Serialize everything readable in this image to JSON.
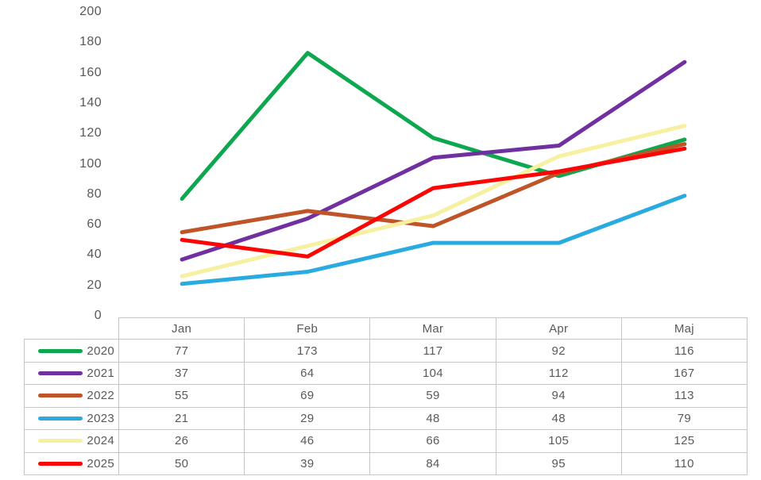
{
  "styles": {
    "text_color": "#595959",
    "border_color": "#c6c6c6",
    "background": "#ffffff"
  },
  "chart_data": {
    "type": "line",
    "title": "",
    "xlabel": "",
    "ylabel": "",
    "categories": [
      "Jan",
      "Feb",
      "Mar",
      "Apr",
      "Maj"
    ],
    "series": [
      {
        "name": "2020",
        "color": "#0DA750",
        "values": [
          77,
          173,
          117,
          92,
          116
        ]
      },
      {
        "name": "2021",
        "color": "#7030A0",
        "values": [
          37,
          64,
          104,
          112,
          167
        ]
      },
      {
        "name": "2022",
        "color": "#BF5428",
        "values": [
          55,
          69,
          59,
          94,
          113
        ]
      },
      {
        "name": "2023",
        "color": "#29ABE2",
        "values": [
          21,
          29,
          48,
          48,
          79
        ]
      },
      {
        "name": "2024",
        "color": "#F6F0A0",
        "values": [
          26,
          46,
          66,
          105,
          125
        ]
      },
      {
        "name": "2025",
        "color": "#FB0505",
        "values": [
          50,
          39,
          84,
          95,
          110
        ]
      }
    ],
    "ylim": [
      0,
      200
    ],
    "yticks": [
      0,
      20,
      40,
      60,
      80,
      100,
      120,
      140,
      160,
      180,
      200
    ],
    "grid": false,
    "legend_position": "table-left-column",
    "data_table_shown": true
  },
  "table": {
    "corner_label": ""
  }
}
